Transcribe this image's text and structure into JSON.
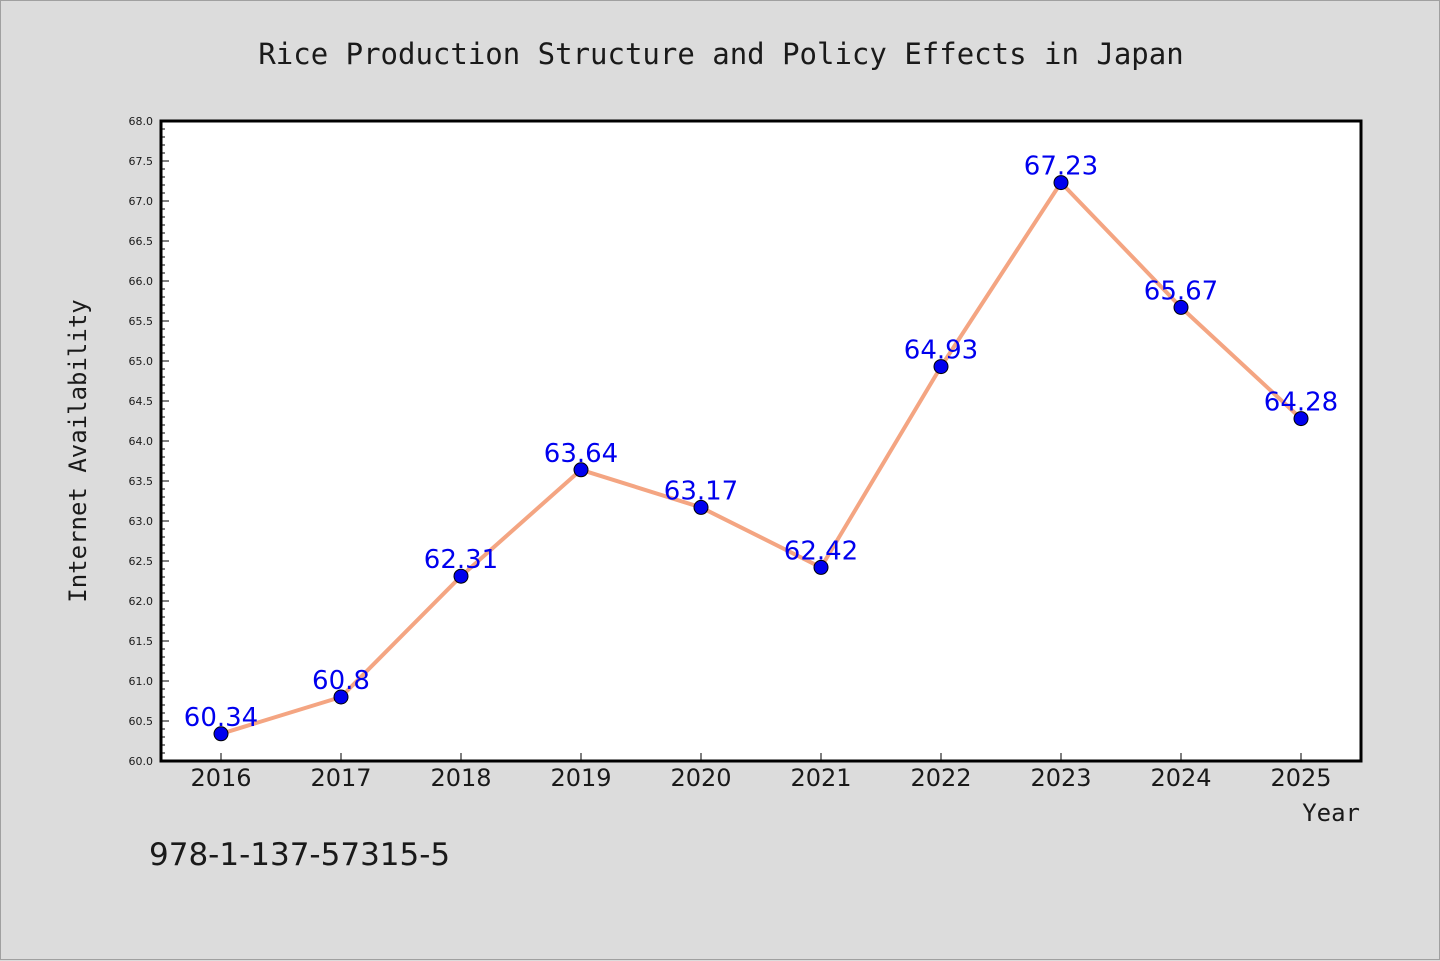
{
  "chart_data": {
    "type": "line",
    "title": "Rice Production Structure and Policy Effects in Japan",
    "xlabel": "Year",
    "ylabel": "Internet Availability",
    "categories": [
      "2016",
      "2017",
      "2018",
      "2019",
      "2020",
      "2021",
      "2022",
      "2023",
      "2024",
      "2025"
    ],
    "series": [
      {
        "values": [
          60.34,
          60.8,
          62.31,
          63.64,
          63.17,
          62.42,
          64.93,
          67.23,
          65.67,
          64.28
        ],
        "labels": [
          "60.34",
          "60.8",
          "62.31",
          "63.64",
          "63.17",
          "62.42",
          "64.93",
          "67.23",
          "65.67",
          "64.28"
        ],
        "line_color": "#f4a582",
        "marker_color": "#0000ee"
      }
    ],
    "ylim": [
      60.0,
      68.0
    ],
    "yticks": [
      "60.0",
      "60.5",
      "61.0",
      "61.5",
      "62.0",
      "62.5",
      "63.0",
      "63.5",
      "64.0",
      "64.5",
      "65.0",
      "65.5",
      "66.0",
      "66.5",
      "67.0",
      "67.5",
      "68.0"
    ],
    "grid": false,
    "legend": "none"
  },
  "footer": {
    "isbn": "978-1-137-57315-5"
  },
  "colors": {
    "background": "#dcdcdc",
    "plot_background": "#ffffff",
    "data_label": "#0000ee"
  }
}
